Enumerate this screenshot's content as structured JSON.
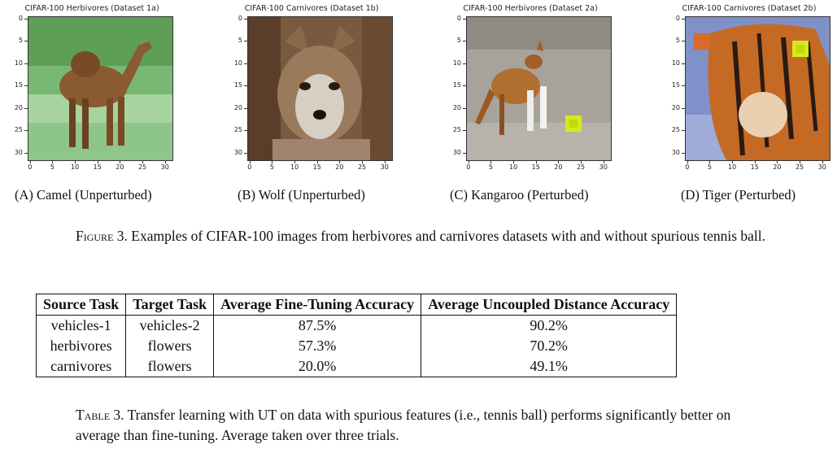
{
  "panels": [
    {
      "title": "CIFAR-100 Herbivores (Dataset 1a)",
      "subcaption_letter": "(A)",
      "subcaption_text": "Camel (Unperturbed)"
    },
    {
      "title": "CIFAR-100 Carnivores (Dataset 1b)",
      "subcaption_letter": "(B)",
      "subcaption_text": "Wolf (Unperturbed)"
    },
    {
      "title": "CIFAR-100 Herbivores (Dataset 2a)",
      "subcaption_letter": "(C)",
      "subcaption_text": "Kangaroo (Perturbed)"
    },
    {
      "title": "CIFAR-100 Carnivores (Dataset 2b)",
      "subcaption_letter": "(D)",
      "subcaption_text": "Tiger (Perturbed)"
    }
  ],
  "axis": {
    "y_ticks": [
      "0",
      "5",
      "10",
      "15",
      "20",
      "25",
      "30"
    ],
    "x_ticks": [
      "0",
      "5",
      "10",
      "15",
      "20",
      "25",
      "30"
    ]
  },
  "figure_caption": {
    "label": "Figure 3.",
    "text": "Examples of CIFAR-100 images from herbivores and carnivores datasets with and without spurious tennis ball."
  },
  "table": {
    "headers": [
      "Source Task",
      "Target Task",
      "Average Fine-Tuning Accuracy",
      "Average Uncoupled Distance Accuracy"
    ],
    "rows": [
      [
        "vehicles-1",
        "vehicles-2",
        "87.5%",
        "90.2%"
      ],
      [
        "herbivores",
        "flowers",
        "57.3%",
        "70.2%"
      ],
      [
        "carnivores",
        "flowers",
        "20.0%",
        "49.1%"
      ]
    ]
  },
  "table_caption": {
    "label": "Table 3.",
    "text": "Transfer learning with UT on data with spurious features (i.e., tennis ball) performs significantly better on average than fine-tuning. Average taken over three trials."
  },
  "colors": {
    "camel_bg": "#7fbf7a",
    "camel_body": "#8a5a30",
    "wolf_bg": "#7a5a3e",
    "kangaroo_bg": "#a8a39a",
    "tiger_bg": "#8090c8",
    "tennis_ball": "#d6ea1a"
  }
}
